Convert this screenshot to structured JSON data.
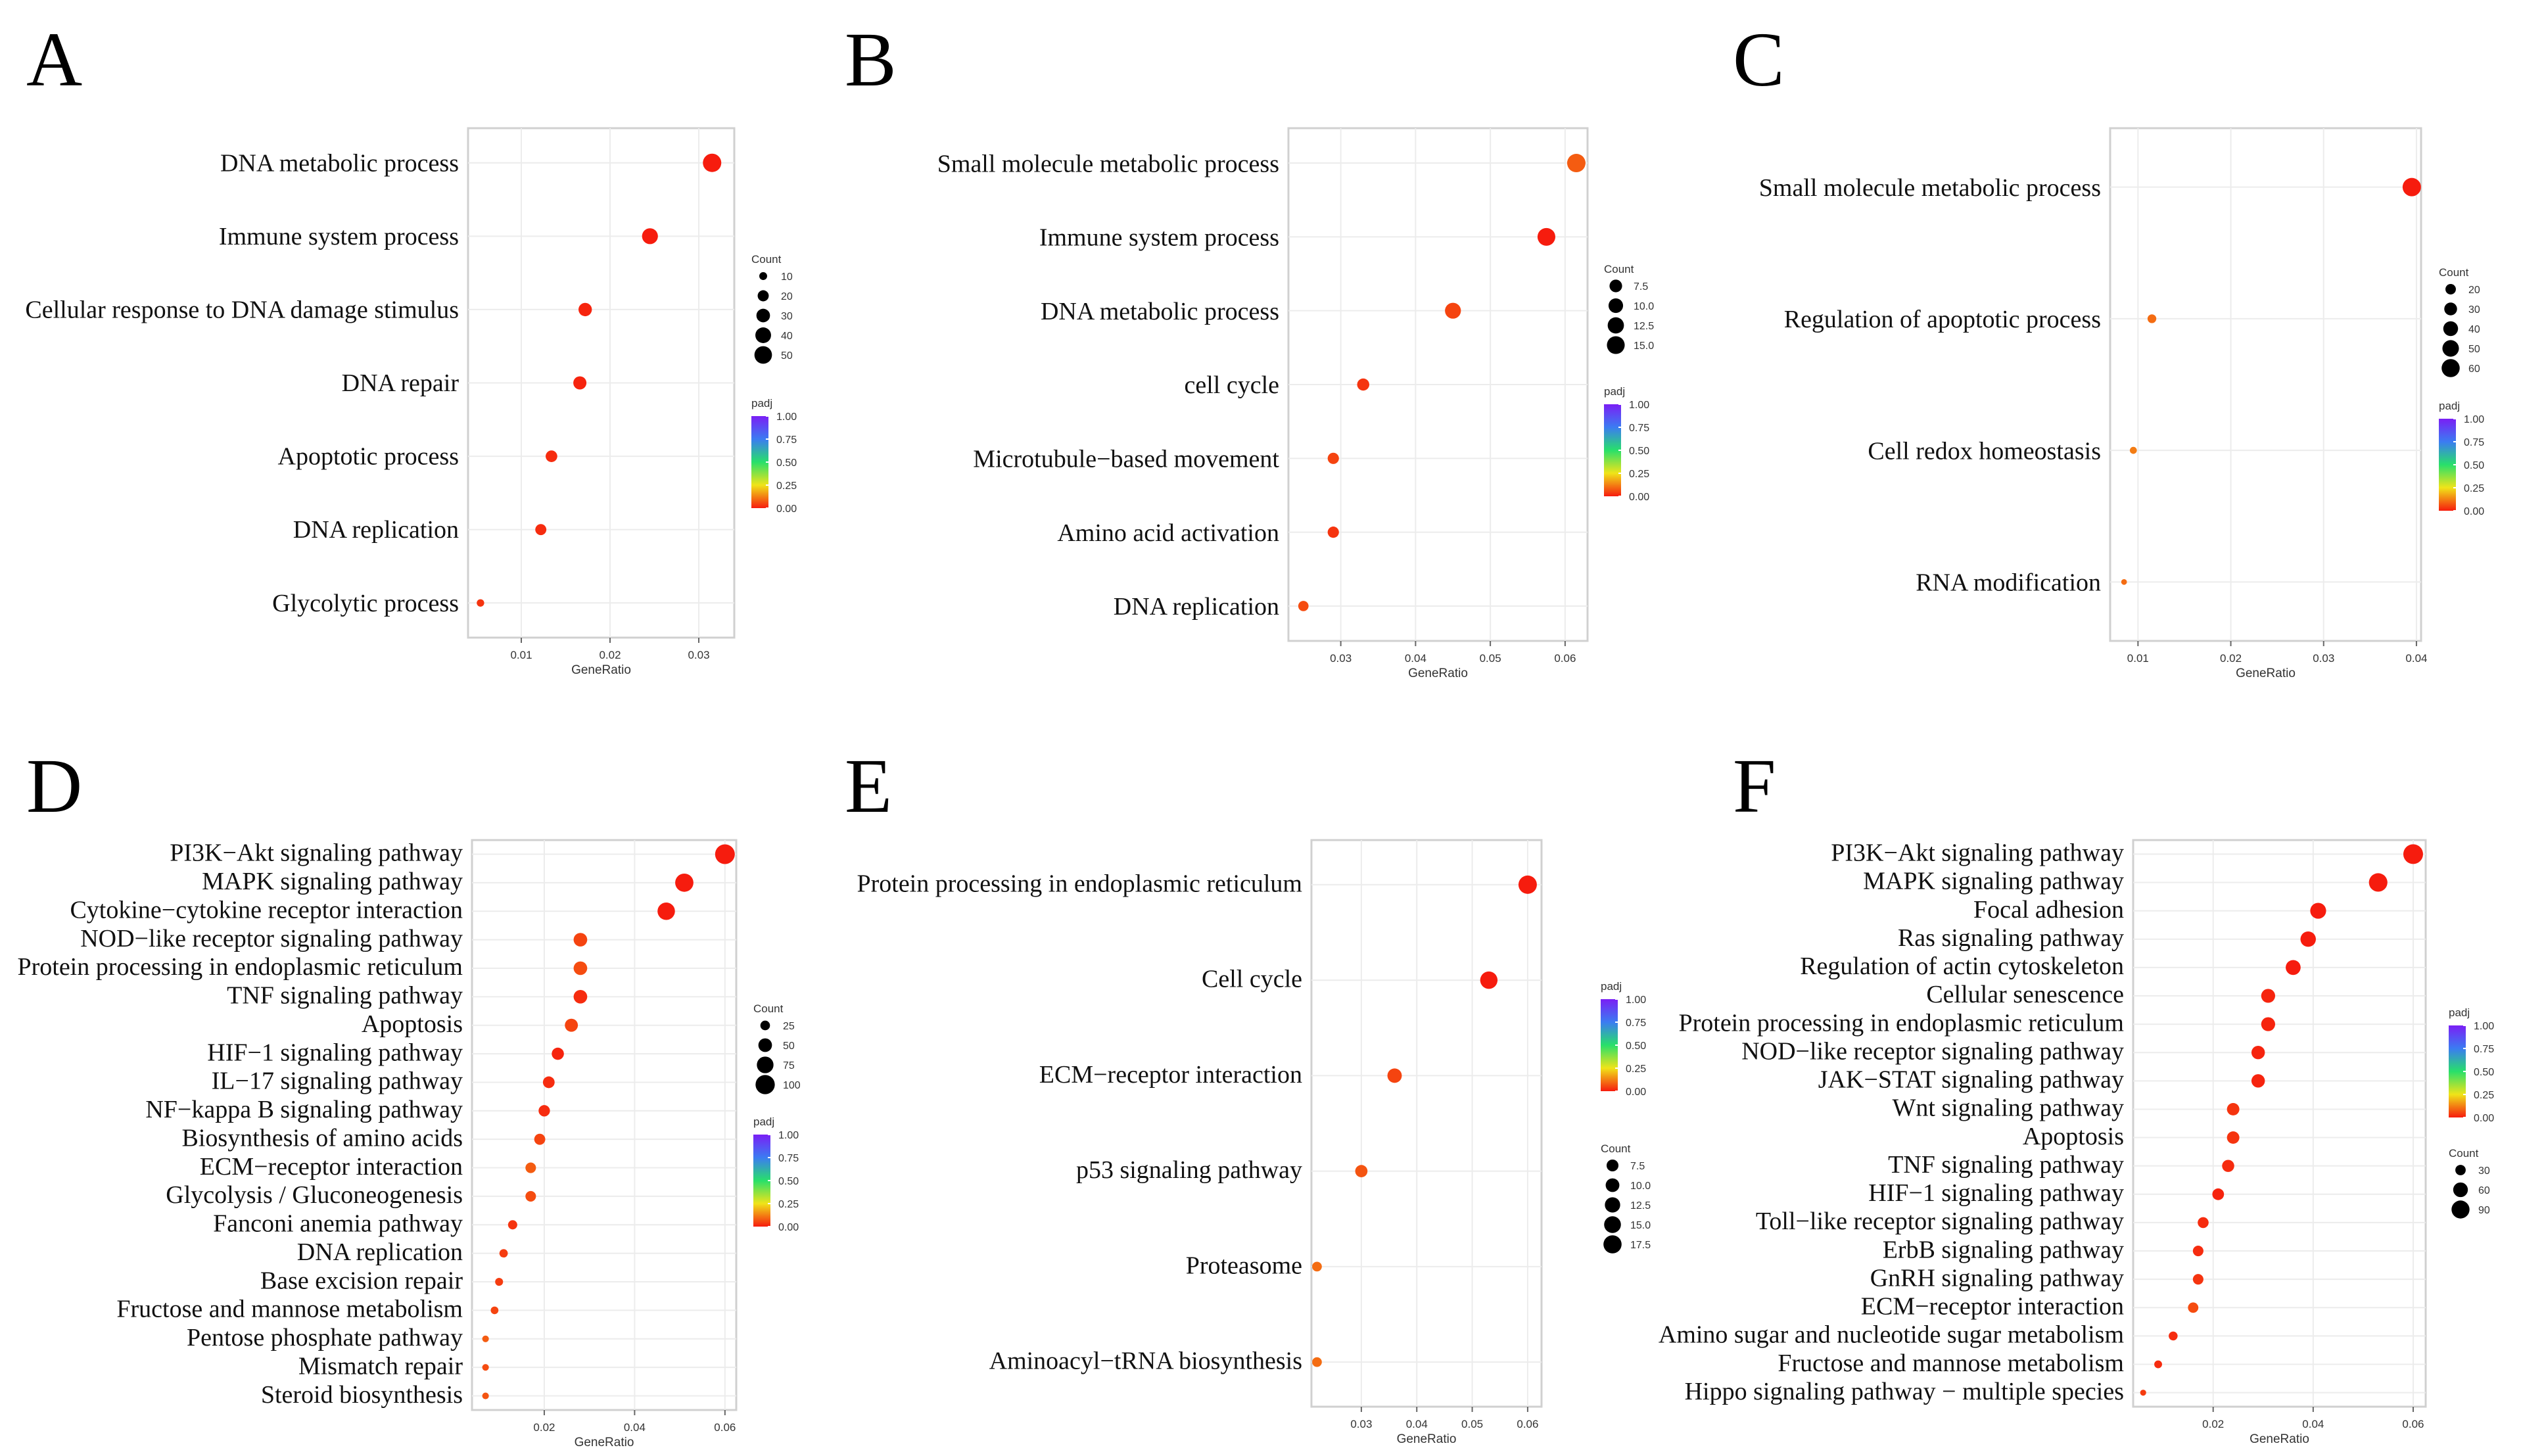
{
  "chart_data": [
    {
      "panel": "A",
      "type": "scatter",
      "categories": [
        "DNA metabolic process",
        "Immune system process",
        "Cellular response to DNA damage stimulus",
        "DNA repair",
        "Apoptotic process",
        "DNA replication",
        "Glycolytic process"
      ],
      "x": [
        0.0315,
        0.0245,
        0.0172,
        0.0166,
        0.0134,
        0.0122,
        0.0054
      ],
      "count": [
        55,
        41,
        29,
        28,
        22,
        20,
        9
      ],
      "padj": [
        0.0,
        0.0,
        0.01,
        0.01,
        0.02,
        0.02,
        0.03
      ],
      "xlabel": "GeneRatio",
      "xlim": [
        0.004,
        0.034
      ],
      "xticks": [
        0.01,
        0.02,
        0.03
      ],
      "xtick_labels": [
        "0.01",
        "0.02",
        "0.03"
      ],
      "size_legend": {
        "title": "Count",
        "values": [
          10,
          20,
          30,
          40,
          50
        ],
        "labels": [
          "10",
          "20",
          "30",
          "40",
          "50"
        ]
      },
      "color_legend": {
        "title": "padj",
        "labels": [
          "1.00",
          "0.75",
          "0.50",
          "0.25",
          "0.00"
        ]
      }
    },
    {
      "panel": "B",
      "type": "scatter",
      "categories": [
        "Small molecule metabolic process",
        "Immune system process",
        "DNA metabolic process",
        "cell cycle",
        "Microtubule−based movement",
        "Amino acid activation",
        "DNA replication"
      ],
      "x": [
        0.0615,
        0.0575,
        0.045,
        0.033,
        0.029,
        0.029,
        0.025
      ],
      "count": [
        16,
        15,
        12,
        7,
        6,
        6,
        5
      ],
      "padj": [
        0.08,
        0.0,
        0.05,
        0.03,
        0.05,
        0.03,
        0.06
      ],
      "xlabel": "GeneRatio",
      "xlim": [
        0.023,
        0.063
      ],
      "xticks": [
        0.03,
        0.04,
        0.05,
        0.06
      ],
      "xtick_labels": [
        "0.03",
        "0.04",
        "0.05",
        "0.06"
      ],
      "size_legend": {
        "title": "Count",
        "values": [
          7.5,
          10.0,
          12.5,
          15.0
        ],
        "labels": [
          "7.5",
          "10.0",
          "12.5",
          "15.0"
        ]
      },
      "color_legend": {
        "title": "padj",
        "labels": [
          "1.00",
          "0.75",
          "0.50",
          "0.25",
          "0.00"
        ]
      }
    },
    {
      "panel": "C",
      "type": "scatter",
      "categories": [
        "Small molecule metabolic process",
        "Regulation of apoptotic process",
        "Cell redox homeostasis",
        "RNA modification"
      ],
      "x": [
        0.0395,
        0.0115,
        0.0095,
        0.0085
      ],
      "count": [
        62,
        14,
        9,
        6
      ],
      "padj": [
        0.0,
        0.1,
        0.12,
        0.1
      ],
      "xlabel": "GeneRatio",
      "xlim": [
        0.007,
        0.0405
      ],
      "xticks": [
        0.01,
        0.02,
        0.03,
        0.04
      ],
      "xtick_labels": [
        "0.01",
        "0.02",
        "0.03",
        "0.04"
      ],
      "size_legend": {
        "title": "Count",
        "values": [
          20,
          30,
          40,
          50,
          60
        ],
        "labels": [
          "20",
          "30",
          "40",
          "50",
          "60"
        ]
      },
      "color_legend": {
        "title": "padj",
        "labels": [
          "1.00",
          "0.75",
          "0.50",
          "0.25",
          "0.00"
        ]
      }
    },
    {
      "panel": "D",
      "type": "scatter",
      "categories": [
        "PI3K−Akt signaling pathway",
        "MAPK signaling pathway",
        "Cytokine−cytokine receptor interaction",
        "NOD−like receptor signaling pathway",
        "Protein processing in endoplasmic reticulum",
        "TNF signaling pathway",
        "Apoptosis",
        "HIF−1 signaling pathway",
        "IL−17 signaling pathway",
        "NF−kappa B signaling pathway",
        "Biosynthesis of amino acids",
        "ECM−receptor interaction",
        "Glycolysis / Gluconeogenesis",
        "Fanconi anemia pathway",
        "DNA replication",
        "Base excision repair",
        "Fructose and mannose metabolism",
        "Pentose phosphate pathway",
        "Mismatch repair",
        "Steroid biosynthesis"
      ],
      "x": [
        0.06,
        0.051,
        0.047,
        0.028,
        0.028,
        0.028,
        0.026,
        0.023,
        0.021,
        0.02,
        0.019,
        0.017,
        0.017,
        0.013,
        0.011,
        0.01,
        0.009,
        0.007,
        0.007,
        0.007
      ],
      "count": [
        105,
        90,
        82,
        50,
        50,
        50,
        46,
        40,
        37,
        35,
        33,
        30,
        30,
        23,
        19,
        17,
        16,
        12,
        12,
        12
      ],
      "padj": [
        0.0,
        0.0,
        0.0,
        0.05,
        0.06,
        0.02,
        0.05,
        0.01,
        0.02,
        0.02,
        0.05,
        0.08,
        0.06,
        0.03,
        0.04,
        0.04,
        0.05,
        0.08,
        0.06,
        0.07
      ],
      "xlabel": "GeneRatio",
      "xlim": [
        0.004,
        0.0625
      ],
      "xticks": [
        0.02,
        0.04,
        0.06
      ],
      "xtick_labels": [
        "0.02",
        "0.04",
        "0.06"
      ],
      "size_legend": {
        "title": "Count",
        "values": [
          25,
          50,
          75,
          100
        ],
        "labels": [
          "25",
          "50",
          "75",
          "100"
        ]
      },
      "color_legend": {
        "title": "padj",
        "labels": [
          "1.00",
          "0.75",
          "0.50",
          "0.25",
          "0.00"
        ]
      }
    },
    {
      "panel": "E",
      "type": "scatter",
      "categories": [
        "Protein processing in endoplasmic reticulum",
        "Cell cycle",
        "ECM−receptor interaction",
        "p53 signaling pathway",
        "Proteasome",
        "Aminoacyl−tRNA biosynthesis"
      ],
      "x": [
        0.06,
        0.053,
        0.036,
        0.03,
        0.022,
        0.022
      ],
      "count": [
        18,
        16,
        11,
        8,
        5,
        5
      ],
      "padj": [
        0.0,
        0.0,
        0.05,
        0.07,
        0.1,
        0.1
      ],
      "xlabel": "GeneRatio",
      "xlim": [
        0.021,
        0.0625
      ],
      "xticks": [
        0.03,
        0.04,
        0.05,
        0.06
      ],
      "xtick_labels": [
        "0.03",
        "0.04",
        "0.05",
        "0.06"
      ],
      "size_legend": {
        "title": "Count",
        "values": [
          7.5,
          10.0,
          12.5,
          15.0,
          17.5
        ],
        "labels": [
          "7.5",
          "10.0",
          "12.5",
          "15.0",
          "17.5"
        ]
      },
      "color_legend": {
        "title": "padj",
        "labels": [
          "1.00",
          "0.75",
          "0.50",
          "0.25",
          "0.00"
        ]
      }
    },
    {
      "panel": "F",
      "type": "scatter",
      "categories": [
        "PI3K−Akt signaling pathway",
        "MAPK signaling pathway",
        "Focal adhesion",
        "Ras signaling pathway",
        "Regulation of actin cytoskeleton",
        "Cellular senescence",
        "Protein processing in endoplasmic reticulum",
        "NOD−like receptor signaling pathway",
        "JAK−STAT signaling pathway",
        "Wnt signaling pathway",
        "Apoptosis",
        "TNF signaling pathway",
        "HIF−1 signaling pathway",
        "Toll−like receptor signaling pathway",
        "ErbB signaling pathway",
        "GnRH signaling pathway",
        "ECM−receptor interaction",
        "Amino sugar and nucleotide sugar metabolism",
        "Fructose and mannose metabolism",
        "Hippo signaling pathway − multiple species"
      ],
      "x": [
        0.06,
        0.053,
        0.041,
        0.039,
        0.036,
        0.031,
        0.031,
        0.029,
        0.029,
        0.024,
        0.024,
        0.023,
        0.021,
        0.018,
        0.017,
        0.017,
        0.016,
        0.012,
        0.009,
        0.006
      ],
      "count": [
        108,
        95,
        70,
        66,
        62,
        54,
        54,
        50,
        50,
        43,
        43,
        41,
        38,
        33,
        31,
        31,
        30,
        22,
        17,
        10
      ],
      "padj": [
        0.0,
        0.0,
        0.0,
        0.0,
        0.0,
        0.01,
        0.01,
        0.01,
        0.01,
        0.03,
        0.03,
        0.02,
        0.01,
        0.02,
        0.02,
        0.03,
        0.06,
        0.02,
        0.02,
        0.04
      ],
      "xlabel": "GeneRatio",
      "xlim": [
        0.004,
        0.0625
      ],
      "xticks": [
        0.02,
        0.04,
        0.06
      ],
      "xtick_labels": [
        "0.02",
        "0.04",
        "0.06"
      ],
      "size_legend": {
        "title": "Count",
        "values": [
          30,
          60,
          90
        ],
        "labels": [
          "30",
          "60",
          "90"
        ]
      },
      "color_legend": {
        "title": "padj",
        "labels": [
          "1.00",
          "0.75",
          "0.50",
          "0.25",
          "0.00"
        ]
      }
    }
  ]
}
